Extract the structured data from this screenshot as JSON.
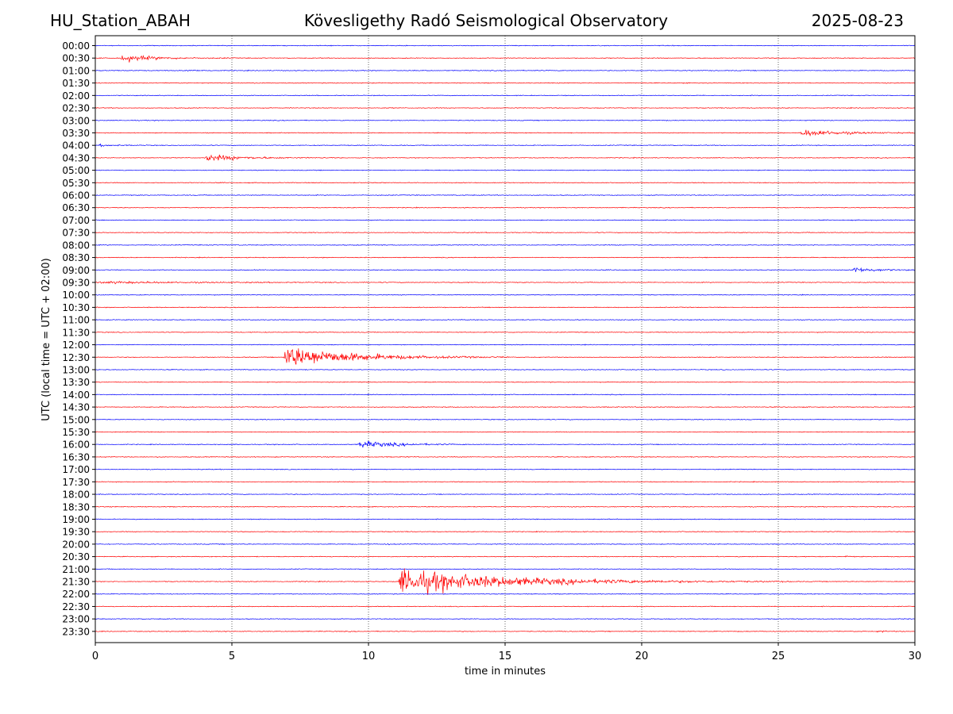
{
  "header": {
    "station": "HU_Station_ABAH",
    "observatory": "Kövesligethy Radó Seismological Observatory",
    "date": "2025-08-23"
  },
  "chart_data": {
    "type": "line",
    "title": "Kövesligethy Radó Seismological Observatory",
    "xlabel": "time in minutes",
    "ylabel": "UTC (local time = UTC + 02:00)",
    "xlim": [
      0,
      30
    ],
    "xticks": [
      "0",
      "5",
      "10",
      "15",
      "20",
      "25",
      "30"
    ],
    "grid": "vertical dotted lines at x ticks",
    "series_colors": [
      "#0000ff",
      "#ff0000"
    ],
    "rows": [
      "00:00",
      "00:30",
      "01:00",
      "01:30",
      "02:00",
      "02:30",
      "03:00",
      "03:30",
      "04:00",
      "04:30",
      "05:00",
      "05:30",
      "06:00",
      "06:30",
      "07:00",
      "07:30",
      "08:00",
      "08:30",
      "09:00",
      "09:30",
      "10:00",
      "10:30",
      "11:00",
      "11:30",
      "12:00",
      "12:30",
      "13:00",
      "13:30",
      "14:00",
      "14:30",
      "15:00",
      "15:30",
      "16:00",
      "16:30",
      "17:00",
      "17:30",
      "18:00",
      "18:30",
      "19:00",
      "19:30",
      "20:00",
      "20:30",
      "21:00",
      "21:30",
      "22:00",
      "22:30",
      "23:00",
      "23:30"
    ],
    "events": [
      {
        "row": "00:30",
        "start_min": 0.9,
        "peak_amp": 0.6,
        "duration_min": 3.5
      },
      {
        "row": "01:00",
        "start_min": 3.3,
        "peak_amp": 0.15,
        "duration_min": 1.2
      },
      {
        "row": "03:30",
        "start_min": 25.8,
        "peak_amp": 0.6,
        "duration_min": 4.2
      },
      {
        "row": "04:00",
        "start_min": 0.1,
        "peak_amp": 0.15,
        "duration_min": 2.0
      },
      {
        "row": "04:30",
        "start_min": 4.0,
        "peak_amp": 0.55,
        "duration_min": 4.0
      },
      {
        "row": "09:00",
        "start_min": 27.7,
        "peak_amp": 0.5,
        "duration_min": 2.3
      },
      {
        "row": "09:30",
        "start_min": 0.1,
        "peak_amp": 0.15,
        "duration_min": 12.0
      },
      {
        "row": "12:30",
        "start_min": 6.9,
        "peak_amp": 1.9,
        "duration_min": 7.0
      },
      {
        "row": "16:00",
        "start_min": 9.6,
        "peak_amp": 0.6,
        "duration_min": 4.0
      },
      {
        "row": "20:00",
        "start_min": 10.5,
        "peak_amp": 0.2,
        "duration_min": 0.6
      },
      {
        "row": "20:30",
        "start_min": 27.4,
        "peak_amp": 0.2,
        "duration_min": 0.4
      },
      {
        "row": "21:30",
        "start_min": 11.1,
        "peak_amp": 2.0,
        "duration_min": 12.0
      },
      {
        "row": "23:30",
        "start_min": 28.6,
        "peak_amp": 0.2,
        "duration_min": 0.8
      }
    ]
  }
}
